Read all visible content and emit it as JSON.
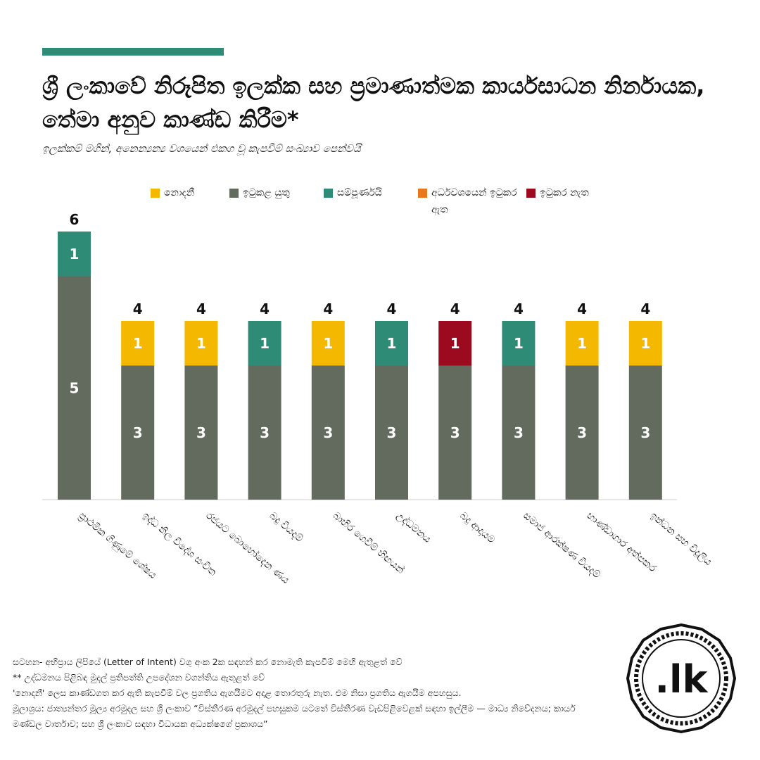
{
  "title": "ශ්‍රී ලංකාවේ නිරූපිත ඉලක්ක සහ ප්‍රමාණාත්මක කාර්යසාධන නිර්නායක, තේමා අනුව කාණ්ඩ කිරීම*",
  "subtitle": "ඉලක්කම් මගින්, අනෙන්‍යන්‍ය වශයෙන් එකග වූ කැපවීම් සංඛ්‍යාව පෙන්වයි",
  "legend": [
    {
      "label": "නොදනී",
      "color": "#f5b800"
    },
    {
      "label": "ඉටුකළ යුතු",
      "color": "#636b5e"
    },
    {
      "label": "සම්පූර්ණයි",
      "color": "#2e8b76"
    },
    {
      "label": "අර්ධවශයෙන් ඉටුකර ඇත",
      "color": "#e8771e"
    },
    {
      "label": "ඉටුකර නැත",
      "color": "#9b0a1e"
    }
  ],
  "chart_data": {
    "type": "bar",
    "stacked": true,
    "categories": [
      "ප්‍රාථමික ගිණුමේ ශේෂය",
      "ඉද්ධ නිල විදේශ සංචිත",
      "රජයට බොහෝදෙන ණය",
      "බදු වියදම්",
      "බාහිර ගෙවීම් හිඟයන්",
      "උද්ධමනය",
      "බදු ආදායම",
      "සමාජ ආරක්ෂණ වියදම්",
      "භාණ්ඩාගාර අත්පකර",
      "ඉන්ධන සහ විදුලිය"
    ],
    "series": [
      {
        "name": "ඉටුකළ යුතු",
        "color": "#636b5e",
        "values": [
          5,
          3,
          3,
          3,
          3,
          3,
          3,
          3,
          3,
          3
        ]
      },
      {
        "name": "නොදනී",
        "color": "#f5b800",
        "values": [
          0,
          1,
          1,
          0,
          1,
          0,
          0,
          0,
          1,
          1
        ]
      },
      {
        "name": "සම්පූර්ණයි",
        "color": "#2e8b76",
        "values": [
          1,
          0,
          0,
          1,
          0,
          1,
          0,
          1,
          0,
          0
        ]
      },
      {
        "name": "අර්ධවශයෙන් ඉටුකර ඇත",
        "color": "#e8771e",
        "values": [
          0,
          0,
          0,
          0,
          0,
          0,
          0,
          0,
          0,
          0
        ]
      },
      {
        "name": "ඉටුකර නැත",
        "color": "#9b0a1e",
        "values": [
          0,
          0,
          0,
          0,
          0,
          0,
          1,
          0,
          0,
          0
        ]
      }
    ],
    "totals": [
      6,
      4,
      4,
      4,
      4,
      4,
      4,
      4,
      4,
      4
    ],
    "ylim": [
      0,
      6
    ],
    "grid": false,
    "legend_position": "top"
  },
  "footer": {
    "note1": "සටහන- අභිප්‍රාය ලිපියේ (Letter of Intent) වගු අංක 2ක සඳහන් කර නොමැති කැපවීම් මෙහි ඇතුළත් වේ",
    "note2": "** උද්ධමනය පිළිබඳ මුදල් ප්‍රතිපත්ති උපදේශන වගන්තිය ඇතුළත් වේ",
    "note3": "'නොදනී' ලෙස කාණ්ඩගත කර ඇති කැපවීම් වල ප්‍රගතිය ඇගයීමට අදාළ තොරතුරු නැත. එම නිසා ප්‍රගතිය ඇගයීම අපහසුය.",
    "source": "මූලාශ්‍රය: ජාත්‍යන්තර මූල්‍ය අරමුදල සහ ශ්‍රී ලංකාව “විස්තීරණ අරමුදල් පහසුකම යටතේ විස්තීරණ වැඩපිළිවෙළක් සඳහා ඉල්ලීම — මාධ්‍ය නිවේදනය; කාර්ය මණ්ඩල වාර්තාව; සහ ශ්‍රී ලංකාව සඳහා විධායක අධ්‍යක්ෂගේ ප්‍රකාශය”"
  },
  "logo": {
    "text": ".lk"
  }
}
